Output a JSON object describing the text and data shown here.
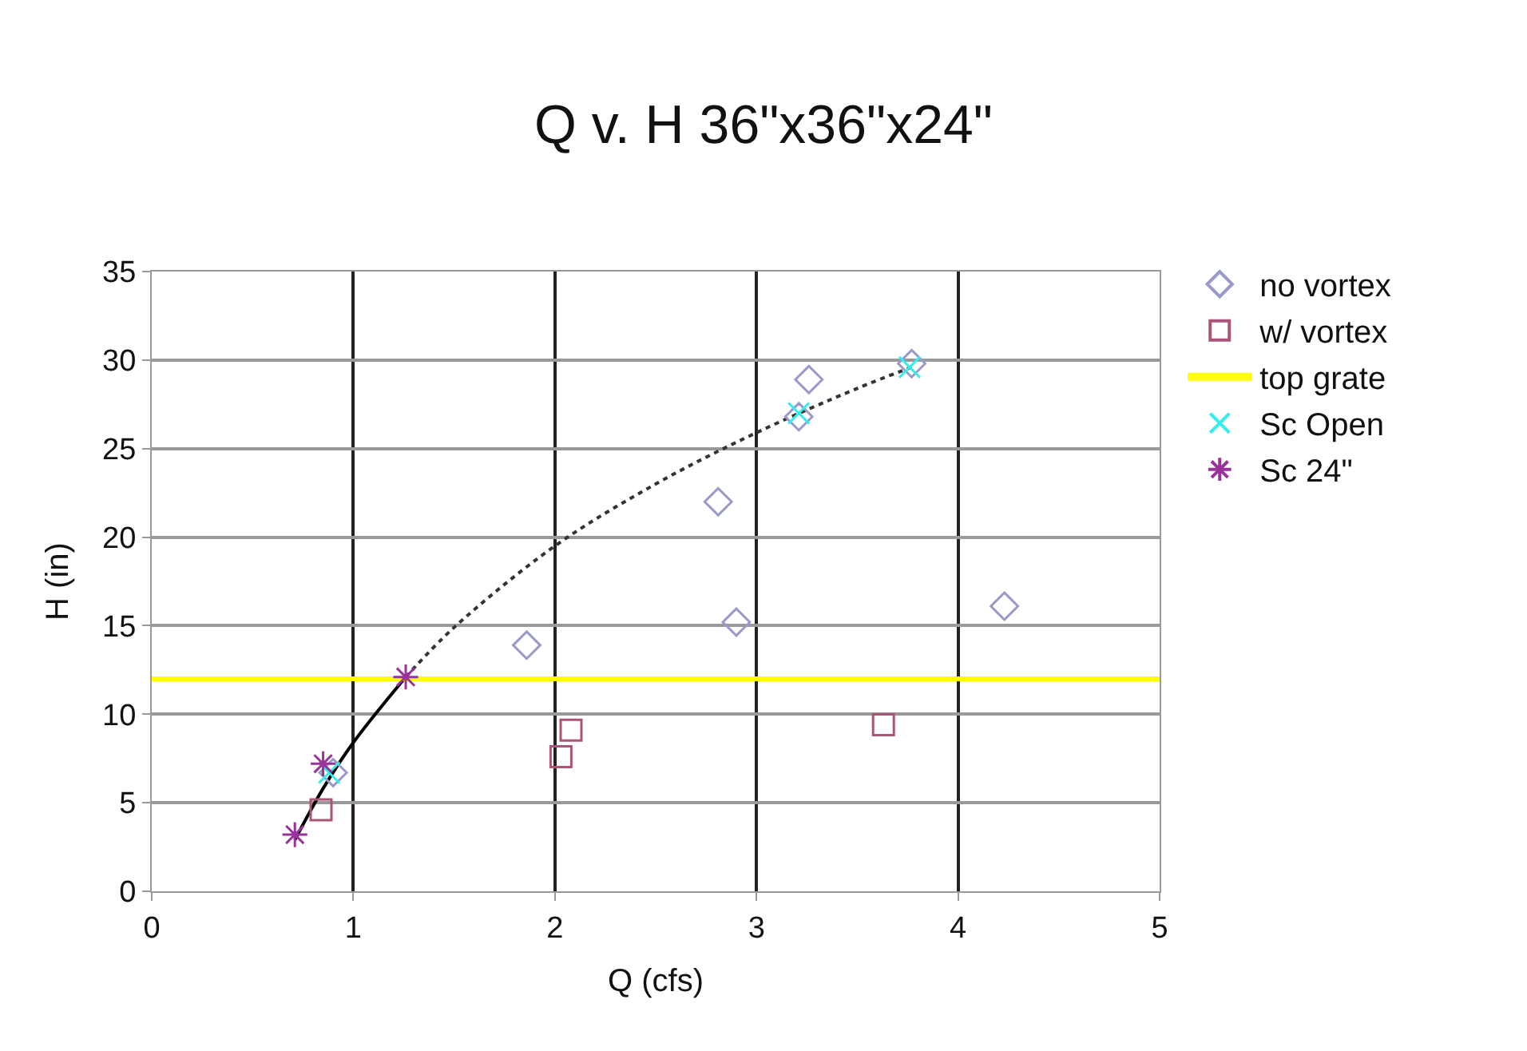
{
  "chart_data": {
    "type": "scatter",
    "title": "Q v. H 36\"x36\"x24\"",
    "xlabel": "Q (cfs)",
    "ylabel": "H (in)",
    "xlim": [
      0,
      5
    ],
    "xticks": [
      0,
      1,
      2,
      3,
      4,
      5
    ],
    "ylim": [
      0,
      35
    ],
    "yticks": [
      0,
      5,
      10,
      15,
      20,
      25,
      30,
      35
    ],
    "grid": true,
    "legend": "right",
    "series": [
      {
        "name": "no vortex",
        "color": "#9999cc",
        "marker": "diamond",
        "x": [
          0.9,
          1.86,
          2.81,
          2.9,
          3.26,
          3.21,
          3.77,
          4.23
        ],
        "values": [
          6.7,
          13.9,
          22.0,
          15.2,
          28.9,
          26.8,
          29.8,
          16.1
        ]
      },
      {
        "name": "w/ vortex",
        "color": "#aa5577",
        "marker": "square",
        "x": [
          0.84,
          2.08,
          2.03,
          3.63
        ],
        "values": [
          4.6,
          9.1,
          7.6,
          9.4
        ]
      },
      {
        "name": "Sc Open",
        "color": "#33eeee",
        "marker": "cross",
        "x": [
          0.88,
          3.21,
          3.76
        ],
        "values": [
          6.7,
          27.0,
          29.6
        ]
      },
      {
        "name": "Sc 24\"",
        "color": "#993399",
        "marker": "cross",
        "x": [
          0.71,
          0.85,
          1.26
        ],
        "values": [
          3.2,
          7.2,
          12.1
        ]
      },
      {
        "type": "line",
        "color": "#000000",
        "line_style": "solid",
        "x": [
          0.71,
          0.85,
          1.0,
          1.26
        ],
        "values": [
          2.9,
          5.8,
          8.4,
          12.1
        ]
      },
      {
        "type": "line",
        "color": "#333333",
        "line_style": "dotted",
        "x": [
          1.26,
          1.5,
          2,
          2.5,
          3,
          3.5,
          3.77
        ],
        "values": [
          12.1,
          14.9,
          19.5,
          23.0,
          25.9,
          28.4,
          29.6
        ]
      }
    ],
    "ref_lines": [
      {
        "axis": "y",
        "value": 12,
        "label": "top grate",
        "color": "#ffff00"
      }
    ]
  }
}
